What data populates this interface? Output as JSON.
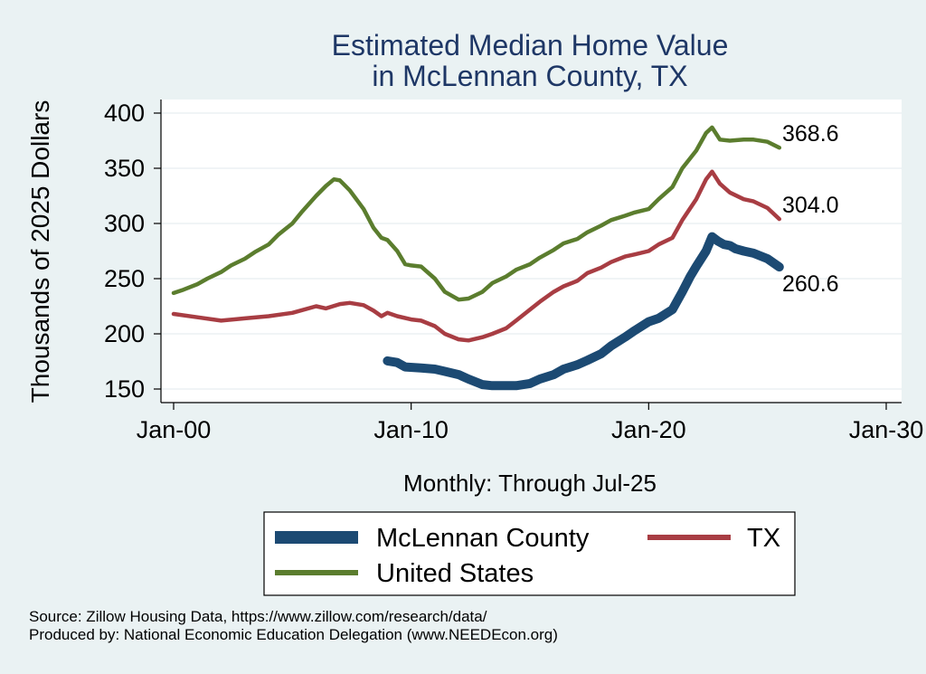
{
  "chart_data": {
    "type": "line",
    "title": [
      "Estimated Median Home Value",
      "in McLennan County, TX"
    ],
    "xlabel": "Monthly: Through Jul-25",
    "ylabel": "Thousands of 2025 Dollars",
    "xlim": [
      2000,
      2030
    ],
    "ylim": [
      150,
      400
    ],
    "x_ticks": [
      {
        "value": 2000,
        "label": "Jan-00"
      },
      {
        "value": 2010,
        "label": "Jan-10"
      },
      {
        "value": 2020,
        "label": "Jan-20"
      },
      {
        "value": 2030,
        "label": "Jan-30"
      }
    ],
    "y_ticks": [
      150,
      200,
      250,
      300,
      350,
      400
    ],
    "grid": true,
    "legend": {
      "position": "bottom",
      "columns": 2
    },
    "series": [
      {
        "name": "McLennan County",
        "color": "#1c4a73",
        "end_label": "260.6",
        "points": [
          [
            "2009-01",
            175.5
          ],
          [
            "2009-06",
            174
          ],
          [
            "2009-10",
            170
          ],
          [
            "2010-06",
            169
          ],
          [
            "2011-01",
            168
          ],
          [
            "2011-06",
            166
          ],
          [
            "2012-01",
            163
          ],
          [
            "2012-06",
            159
          ],
          [
            "2013-01",
            154
          ],
          [
            "2013-06",
            153
          ],
          [
            "2014-01",
            153
          ],
          [
            "2014-06",
            153
          ],
          [
            "2015-01",
            155
          ],
          [
            "2015-06",
            159
          ],
          [
            "2016-01",
            163
          ],
          [
            "2016-06",
            168
          ],
          [
            "2017-01",
            172
          ],
          [
            "2017-06",
            176
          ],
          [
            "2018-01",
            182
          ],
          [
            "2018-06",
            189
          ],
          [
            "2019-01",
            197
          ],
          [
            "2019-06",
            203
          ],
          [
            "2020-01",
            211
          ],
          [
            "2020-06",
            214
          ],
          [
            "2021-01",
            222
          ],
          [
            "2021-06",
            238
          ],
          [
            "2021-10",
            252
          ],
          [
            "2022-01",
            261
          ],
          [
            "2022-06",
            275
          ],
          [
            "2022-09",
            288
          ],
          [
            "2022-12",
            284
          ],
          [
            "2023-03",
            281
          ],
          [
            "2023-06",
            280
          ],
          [
            "2023-09",
            277
          ],
          [
            "2024-01",
            275
          ],
          [
            "2024-06",
            273
          ],
          [
            "2025-01",
            268
          ],
          [
            "2025-07",
            260.6
          ]
        ]
      },
      {
        "name": "TX",
        "color": "#a83d43",
        "end_label": "304.0",
        "points": [
          [
            "2000-01",
            218
          ],
          [
            "2001-01",
            215
          ],
          [
            "2002-01",
            212
          ],
          [
            "2003-01",
            214
          ],
          [
            "2004-01",
            216
          ],
          [
            "2005-01",
            219
          ],
          [
            "2006-01",
            225
          ],
          [
            "2006-06",
            223
          ],
          [
            "2007-01",
            227
          ],
          [
            "2007-06",
            228
          ],
          [
            "2008-01",
            226
          ],
          [
            "2008-06",
            221
          ],
          [
            "2008-10",
            216
          ],
          [
            "2009-01",
            219
          ],
          [
            "2009-06",
            216
          ],
          [
            "2010-01",
            213
          ],
          [
            "2010-06",
            212
          ],
          [
            "2011-01",
            207
          ],
          [
            "2011-06",
            200
          ],
          [
            "2012-01",
            195
          ],
          [
            "2012-06",
            194
          ],
          [
            "2013-01",
            197
          ],
          [
            "2013-06",
            200
          ],
          [
            "2014-01",
            205
          ],
          [
            "2014-06",
            212
          ],
          [
            "2015-01",
            222
          ],
          [
            "2015-06",
            229
          ],
          [
            "2016-01",
            238
          ],
          [
            "2016-06",
            243
          ],
          [
            "2017-01",
            248
          ],
          [
            "2017-06",
            255
          ],
          [
            "2018-01",
            260
          ],
          [
            "2018-06",
            265
          ],
          [
            "2019-01",
            270
          ],
          [
            "2019-06",
            272
          ],
          [
            "2020-01",
            275
          ],
          [
            "2020-06",
            281
          ],
          [
            "2021-01",
            287
          ],
          [
            "2021-06",
            303
          ],
          [
            "2022-01",
            322
          ],
          [
            "2022-06",
            340
          ],
          [
            "2022-09",
            347
          ],
          [
            "2023-01",
            336
          ],
          [
            "2023-06",
            328
          ],
          [
            "2024-01",
            322
          ],
          [
            "2024-06",
            320
          ],
          [
            "2025-01",
            314
          ],
          [
            "2025-07",
            304.0
          ]
        ]
      },
      {
        "name": "United States",
        "color": "#5b7d2e",
        "end_label": "368.6",
        "points": [
          [
            "2000-01",
            237
          ],
          [
            "2000-06",
            240
          ],
          [
            "2001-01",
            245
          ],
          [
            "2001-06",
            250
          ],
          [
            "2002-01",
            256
          ],
          [
            "2002-06",
            262
          ],
          [
            "2003-01",
            268
          ],
          [
            "2003-06",
            274
          ],
          [
            "2004-01",
            281
          ],
          [
            "2004-06",
            290
          ],
          [
            "2005-01",
            300
          ],
          [
            "2005-06",
            311
          ],
          [
            "2006-01",
            325
          ],
          [
            "2006-06",
            334
          ],
          [
            "2006-10",
            340
          ],
          [
            "2007-01",
            339
          ],
          [
            "2007-06",
            330
          ],
          [
            "2008-01",
            313
          ],
          [
            "2008-06",
            296
          ],
          [
            "2008-10",
            287
          ],
          [
            "2009-01",
            285
          ],
          [
            "2009-06",
            275
          ],
          [
            "2009-10",
            263
          ],
          [
            "2010-01",
            262
          ],
          [
            "2010-06",
            261
          ],
          [
            "2011-01",
            250
          ],
          [
            "2011-06",
            238
          ],
          [
            "2012-01",
            231
          ],
          [
            "2012-06",
            232
          ],
          [
            "2013-01",
            238
          ],
          [
            "2013-06",
            246
          ],
          [
            "2014-01",
            252
          ],
          [
            "2014-06",
            258
          ],
          [
            "2015-01",
            263
          ],
          [
            "2015-06",
            269
          ],
          [
            "2016-01",
            276
          ],
          [
            "2016-06",
            282
          ],
          [
            "2017-01",
            286
          ],
          [
            "2017-06",
            292
          ],
          [
            "2018-01",
            298
          ],
          [
            "2018-06",
            303
          ],
          [
            "2019-01",
            307
          ],
          [
            "2019-06",
            310
          ],
          [
            "2020-01",
            313
          ],
          [
            "2020-06",
            322
          ],
          [
            "2021-01",
            333
          ],
          [
            "2021-06",
            350
          ],
          [
            "2022-01",
            366
          ],
          [
            "2022-06",
            382
          ],
          [
            "2022-09",
            387
          ],
          [
            "2023-01",
            376
          ],
          [
            "2023-06",
            375
          ],
          [
            "2024-01",
            376
          ],
          [
            "2024-06",
            376
          ],
          [
            "2025-01",
            374
          ],
          [
            "2025-07",
            368.6
          ]
        ]
      }
    ]
  },
  "source_note": "Source: Zillow Housing Data, https://www.zillow.com/research/data/",
  "producer_note": "Produced by: National Economic Education Delegation (www.NEEDEcon.org)"
}
